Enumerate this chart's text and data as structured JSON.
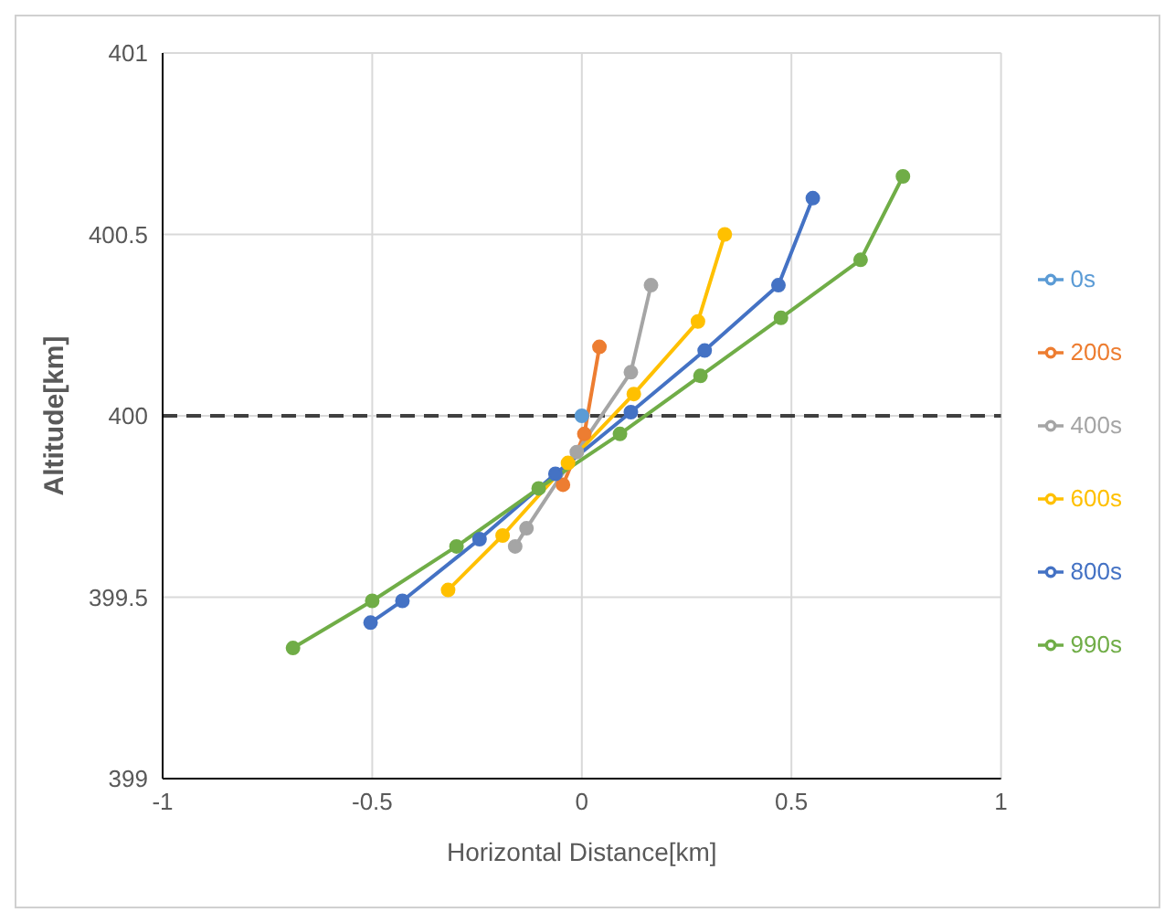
{
  "chart_data": {
    "type": "line",
    "xlabel": "Horizontal Distance[km]",
    "ylabel": "Altitude[km]",
    "xlim": [
      -1,
      1
    ],
    "xticks": [
      -1,
      -0.5,
      0,
      0.5,
      1
    ],
    "ylim": [
      399,
      401
    ],
    "yticks": [
      399,
      399.5,
      400,
      400.5,
      401
    ],
    "grid": true,
    "legend": "right",
    "marker": "circle",
    "line_style": "solid",
    "ref_lines": [
      {
        "axis": "y",
        "value": 400,
        "color": "#404040",
        "line_style": "dashed"
      }
    ],
    "series": [
      {
        "name": "0s",
        "color": "#5b9bd5",
        "x": [
          0
        ],
        "values": [
          400
        ]
      },
      {
        "name": "200s",
        "color": "#ed7d31",
        "x": [
          -0.045,
          0.006,
          0.042
        ],
        "values": [
          399.81,
          399.95,
          400.19
        ]
      },
      {
        "name": "400s",
        "color": "#a5a5a5",
        "x": [
          -0.159,
          -0.132,
          -0.012,
          0.117,
          0.165
        ],
        "values": [
          399.64,
          399.69,
          399.9,
          400.12,
          400.36
        ]
      },
      {
        "name": "600s",
        "color": "#ffc000",
        "x": [
          -0.319,
          -0.189,
          -0.033,
          0.124,
          0.277,
          0.341
        ],
        "values": [
          399.52,
          399.67,
          399.87,
          400.06,
          400.26,
          400.5
        ]
      },
      {
        "name": "800s",
        "color": "#4472c4",
        "x": [
          -0.504,
          -0.428,
          -0.244,
          -0.063,
          0.117,
          0.293,
          0.469,
          0.551
        ],
        "values": [
          399.43,
          399.49,
          399.66,
          399.84,
          400.01,
          400.18,
          400.36,
          400.6
        ]
      },
      {
        "name": "990s",
        "color": "#70ad47",
        "x": [
          -0.689,
          -0.5,
          -0.299,
          -0.103,
          0.091,
          0.283,
          0.475,
          0.665,
          0.766
        ],
        "values": [
          399.36,
          399.49,
          399.64,
          399.8,
          399.95,
          400.11,
          400.27,
          400.43,
          400.66
        ]
      }
    ]
  }
}
